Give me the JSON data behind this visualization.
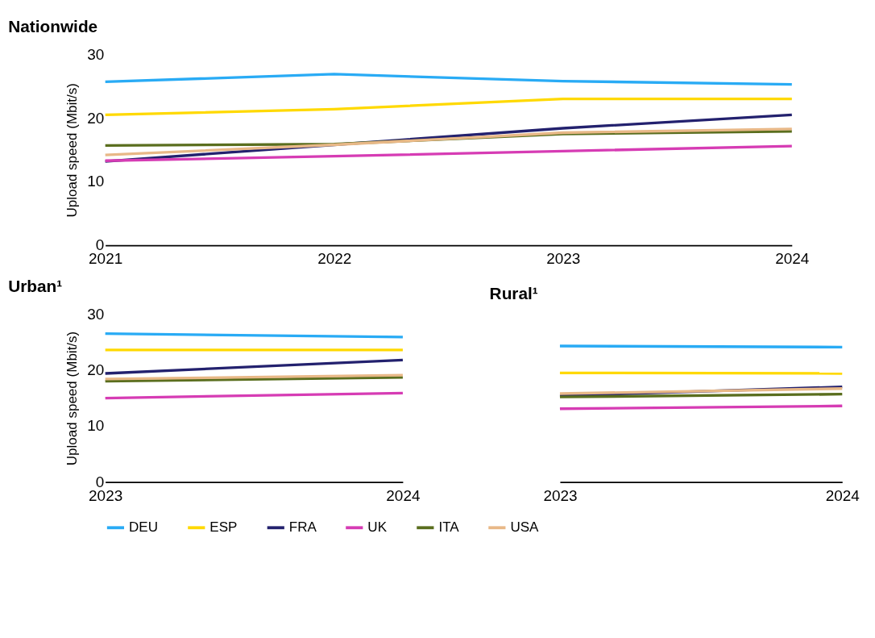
{
  "chart_data": [
    {
      "type": "line",
      "title": "Nationwide",
      "ylabel": "Upload speed (Mbit/s)",
      "categories": [
        "2021",
        "2022",
        "2023",
        "2024"
      ],
      "ylim": [
        0,
        30
      ],
      "yticks": [
        0,
        10,
        20,
        30
      ],
      "grid": false,
      "legend": "bottom",
      "marker": "none",
      "line_style": "solid",
      "series": [
        {
          "name": "DEU",
          "color": "#29abf5",
          "values": [
            25.7,
            26.9,
            25.8,
            25.3
          ]
        },
        {
          "name": "ESP",
          "color": "#ffd900",
          "values": [
            20.5,
            21.4,
            23.0,
            23.0
          ]
        },
        {
          "name": "FRA",
          "color": "#23216e",
          "values": [
            13.2,
            15.8,
            18.4,
            20.5
          ]
        },
        {
          "name": "UK",
          "color": "#d63cb4",
          "values": [
            13.3,
            14.0,
            14.8,
            15.6
          ]
        },
        {
          "name": "ITA",
          "color": "#5a6e1e",
          "values": [
            15.7,
            15.9,
            17.5,
            17.9
          ]
        },
        {
          "name": "USA",
          "color": "#e8b887",
          "values": [
            14.2,
            15.8,
            17.7,
            18.3
          ]
        }
      ]
    },
    {
      "type": "line",
      "title": "Urban¹",
      "ylabel": "Upload speed (Mbit/s)",
      "categories": [
        "2023",
        "2024"
      ],
      "ylim": [
        0,
        30
      ],
      "yticks": [
        0,
        10,
        20,
        30
      ],
      "grid": false,
      "legend": "bottom",
      "marker": "none",
      "line_style": "solid",
      "series": [
        {
          "name": "DEU",
          "color": "#29abf5",
          "values": [
            26.5,
            25.9
          ]
        },
        {
          "name": "ESP",
          "color": "#ffd900",
          "values": [
            23.6,
            23.6
          ]
        },
        {
          "name": "FRA",
          "color": "#23216e",
          "values": [
            19.4,
            21.8
          ]
        },
        {
          "name": "UK",
          "color": "#d63cb4",
          "values": [
            15.0,
            15.9
          ]
        },
        {
          "name": "ITA",
          "color": "#5a6e1e",
          "values": [
            18.0,
            18.7
          ]
        },
        {
          "name": "USA",
          "color": "#e8b887",
          "values": [
            18.4,
            19.1
          ]
        }
      ]
    },
    {
      "type": "line",
      "title": "Rural¹",
      "categories": [
        "2023",
        "2024"
      ],
      "ylim": [
        0,
        30
      ],
      "yticks": [
        0,
        10,
        20,
        30
      ],
      "tick_labels": "x",
      "grid": false,
      "legend": "bottom",
      "marker": "none",
      "line_style": "solid",
      "series": [
        {
          "name": "DEU",
          "color": "#29abf5",
          "values": [
            24.3,
            24.1
          ]
        },
        {
          "name": "ESP",
          "color": "#ffd900",
          "values": [
            19.5,
            19.4
          ]
        },
        {
          "name": "FRA",
          "color": "#23216e",
          "values": [
            15.4,
            17.0
          ]
        },
        {
          "name": "UK",
          "color": "#d63cb4",
          "values": [
            13.1,
            13.6
          ]
        },
        {
          "name": "ITA",
          "color": "#5a6e1e",
          "values": [
            15.2,
            15.7
          ]
        },
        {
          "name": "USA",
          "color": "#e8b887",
          "values": [
            15.8,
            16.7
          ]
        }
      ]
    }
  ]
}
